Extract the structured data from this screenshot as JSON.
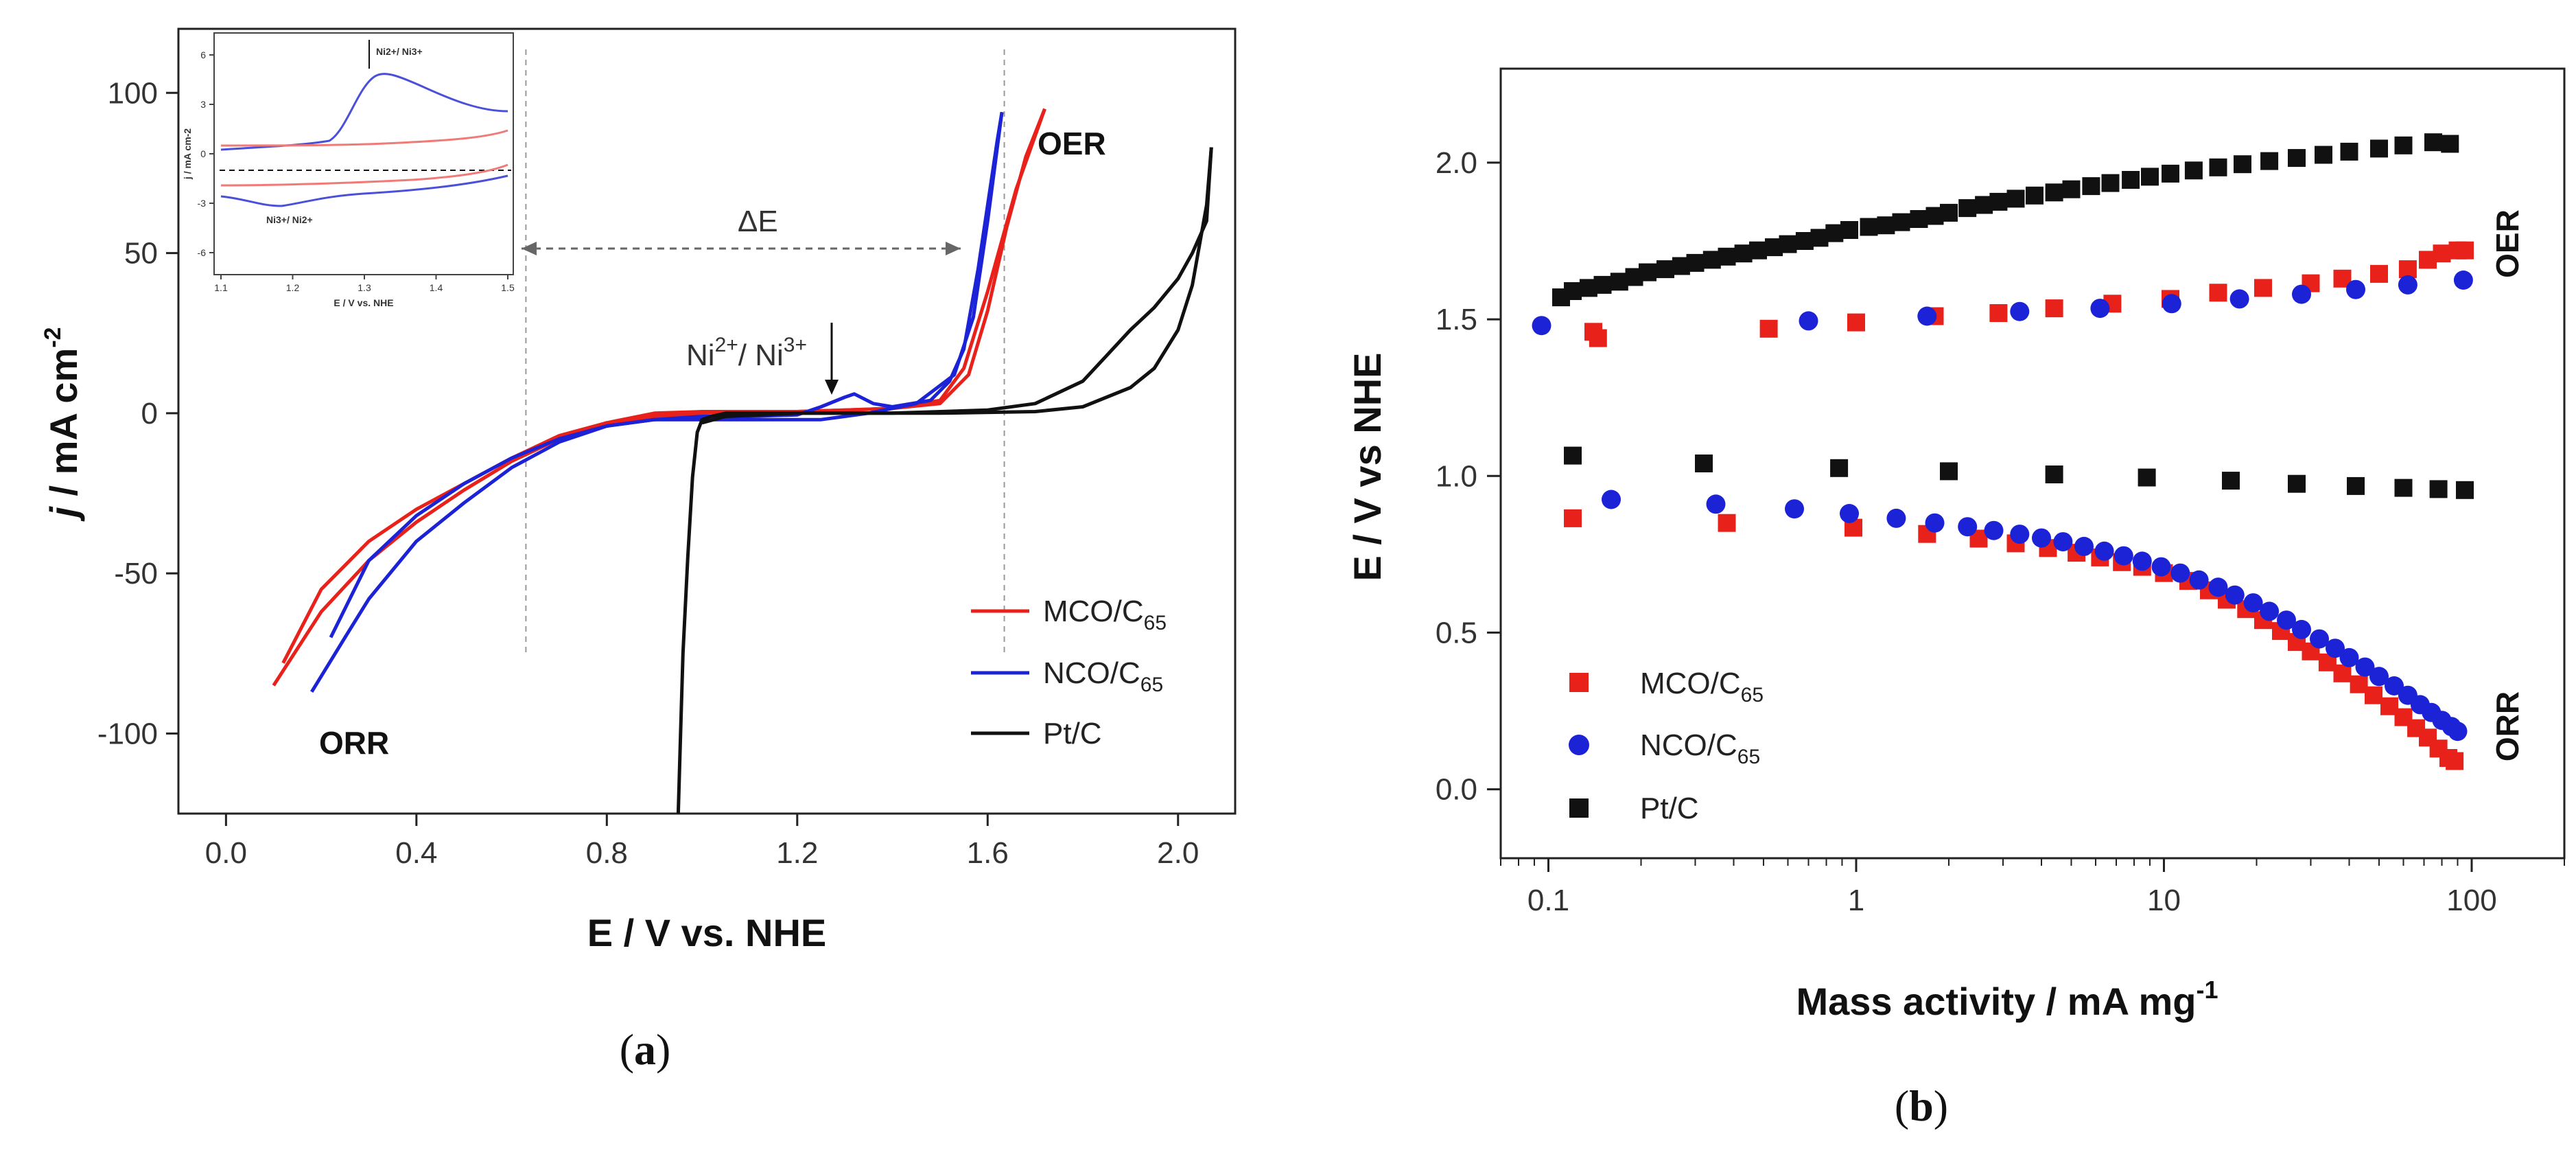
{
  "chart_data": [
    {
      "id": "a",
      "type": "line",
      "panel_label": "a",
      "xlabel": "E / V vs. NHE",
      "ylabel_italic": "j",
      "ylabel_rest": " / mA cm",
      "ylabel_sup": "-2",
      "xlim": [
        -0.1,
        2.12
      ],
      "ylim": [
        -125,
        120
      ],
      "xticks": [
        "0.0",
        "0.4",
        "0.8",
        "1.2",
        "1.6",
        "2.0"
      ],
      "yticks": [
        "-100",
        "-50",
        "0",
        "50",
        "100"
      ],
      "annotations": {
        "oer": "OER",
        "orr": "ORR",
        "delta_e": "ΔE",
        "ni_label": "Ni",
        "ni_sup1": "2+",
        "ni_sep": "/ Ni",
        "ni_sup2": "3+"
      },
      "legend": [
        {
          "name": "MCO/C",
          "sub": "65",
          "color": "#e8221b"
        },
        {
          "name": "NCO/C",
          "sub": "65",
          "color": "#1c22d6"
        },
        {
          "name": "Pt/C",
          "sub": "",
          "color": "#111111"
        }
      ],
      "series": [
        {
          "name": "MCO/C65",
          "color": "#e8221b",
          "x": [
            0.1,
            0.2,
            0.3,
            0.4,
            0.5,
            0.6,
            0.7,
            0.8,
            0.9,
            1.0,
            1.1,
            1.2,
            1.3,
            1.4,
            1.5,
            1.56,
            1.6,
            1.64,
            1.68,
            1.72
          ],
          "y": [
            -85,
            -62,
            -46,
            -34,
            -24,
            -15,
            -8,
            -3,
            -1,
            0,
            0.5,
            0.5,
            1,
            1.5,
            3,
            12,
            32,
            58,
            80,
            95
          ]
        },
        {
          "name": "MCO/C65 (return)",
          "color": "#e8221b",
          "x": [
            1.72,
            1.66,
            1.6,
            1.55,
            1.5,
            1.4,
            1.3,
            1.2,
            1.1,
            1.0,
            0.9,
            0.8,
            0.7,
            0.6,
            0.5,
            0.4,
            0.3,
            0.2,
            0.12
          ],
          "y": [
            95,
            70,
            38,
            14,
            4,
            1.5,
            1,
            0.5,
            0.5,
            0.5,
            0,
            -3,
            -7,
            -14,
            -22,
            -30,
            -40,
            -55,
            -78
          ]
        },
        {
          "name": "NCO/C65",
          "color": "#1c22d6",
          "x": [
            0.18,
            0.25,
            0.3,
            0.4,
            0.5,
            0.6,
            0.7,
            0.8,
            0.9,
            1.0,
            1.1,
            1.2,
            1.25,
            1.3,
            1.32,
            1.36,
            1.4,
            1.48,
            1.52,
            1.55,
            1.58,
            1.6,
            1.62,
            1.63
          ],
          "y": [
            -87,
            -70,
            -58,
            -40,
            -28,
            -17,
            -9,
            -4,
            -2,
            -1,
            -1,
            -0.5,
            2,
            5,
            6,
            3,
            2,
            4,
            10,
            20,
            45,
            65,
            85,
            94
          ]
        },
        {
          "name": "NCO/C65 (return)",
          "color": "#1c22d6",
          "x": [
            1.63,
            1.6,
            1.57,
            1.53,
            1.45,
            1.35,
            1.3,
            1.25,
            1.2,
            1.1,
            1.0,
            0.9,
            0.8,
            0.7,
            0.6,
            0.5,
            0.4,
            0.3,
            0.22
          ],
          "y": [
            94,
            60,
            30,
            12,
            3,
            0,
            -1,
            -2,
            -2,
            -2,
            -2,
            -2,
            -4,
            -8,
            -14,
            -22,
            -32,
            -46,
            -70
          ]
        },
        {
          "name": "Pt/C",
          "color": "#111111",
          "x": [
            0.95,
            0.955,
            0.96,
            0.97,
            0.98,
            0.99,
            1.0,
            1.02,
            1.05,
            1.1,
            1.3,
            1.5,
            1.7,
            1.8,
            1.9,
            1.95,
            2.0,
            2.03,
            2.06,
            2.07
          ],
          "y": [
            -125,
            -100,
            -75,
            -45,
            -20,
            -6,
            -2,
            -1,
            0,
            0,
            0,
            0,
            0.5,
            2,
            8,
            14,
            26,
            40,
            65,
            83
          ]
        },
        {
          "name": "Pt/C (return)",
          "color": "#111111",
          "x": [
            2.07,
            2.06,
            2.03,
            2.0,
            1.95,
            1.9,
            1.85,
            1.8,
            1.7,
            1.6,
            1.4,
            1.2,
            1.05,
            1.0
          ],
          "y": [
            83,
            60,
            50,
            42,
            33,
            26,
            18,
            10,
            3,
            1,
            0,
            0,
            -1,
            -3
          ]
        }
      ],
      "inset": {
        "xlabel": "E / V vs. NHE",
        "ylabel": "j / mA cm-2",
        "xticks": [
          "1.1",
          "1.2",
          "1.3",
          "1.4",
          "1.5"
        ],
        "yticks": [
          "-6",
          "-3",
          "0",
          "3",
          "6"
        ],
        "label_top": "Ni2+/ Ni3+",
        "label_bottom": "Ni3+/ Ni2+"
      }
    },
    {
      "id": "b",
      "type": "scatter",
      "panel_label": "b",
      "xlabel": "Mass activity / mA mg",
      "xlabel_sup": "-1",
      "ylabel": "E / V vs NHE",
      "xscale": "log",
      "xlim": [
        0.07,
        200
      ],
      "ylim": [
        -0.22,
        2.3
      ],
      "xticks": [
        "0.1",
        "1",
        "10",
        "100"
      ],
      "yticks": [
        "0.0",
        "0.5",
        "1.0",
        "1.5",
        "2.0"
      ],
      "annotations": {
        "oer": "OER",
        "orr": "ORR"
      },
      "legend": [
        {
          "name": "MCO/C",
          "sub": "65",
          "color": "#e8221b",
          "marker": "square"
        },
        {
          "name": "NCO/C",
          "sub": "65",
          "color": "#1c22d6",
          "marker": "circle"
        },
        {
          "name": "Pt/C",
          "sub": "",
          "color": "#111111",
          "marker": "square"
        }
      ],
      "series": [
        {
          "name": "Pt/C OER",
          "color": "#111111",
          "marker": "square",
          "x": [
            0.11,
            0.12,
            0.135,
            0.15,
            0.17,
            0.19,
            0.21,
            0.24,
            0.27,
            0.3,
            0.34,
            0.38,
            0.43,
            0.48,
            0.54,
            0.6,
            0.68,
            0.76,
            0.85,
            0.95,
            1.1,
            1.25,
            1.4,
            1.6,
            1.8,
            2.0,
            2.3,
            2.6,
            2.9,
            3.3,
            3.8,
            4.4,
            5.0,
            5.8,
            6.7,
            7.8,
            9.0,
            10.5,
            12.5,
            15,
            18,
            22,
            27,
            33,
            40,
            50,
            60,
            75,
            85
          ],
          "y": [
            1.57,
            1.59,
            1.6,
            1.61,
            1.62,
            1.635,
            1.65,
            1.66,
            1.67,
            1.68,
            1.69,
            1.7,
            1.71,
            1.72,
            1.73,
            1.74,
            1.75,
            1.76,
            1.775,
            1.785,
            1.795,
            1.8,
            1.81,
            1.82,
            1.83,
            1.84,
            1.855,
            1.865,
            1.875,
            1.885,
            1.895,
            1.905,
            1.915,
            1.925,
            1.935,
            1.945,
            1.955,
            1.965,
            1.975,
            1.985,
            1.995,
            2.005,
            2.015,
            2.025,
            2.035,
            2.045,
            2.055,
            2.065,
            2.06
          ]
        },
        {
          "name": "Pt/C ORR",
          "color": "#111111",
          "marker": "square",
          "x": [
            0.12,
            0.32,
            0.88,
            2.0,
            4.4,
            8.8,
            16.5,
            27,
            42,
            60,
            78,
            95
          ],
          "y": [
            1.065,
            1.04,
            1.025,
            1.015,
            1.005,
            0.995,
            0.985,
            0.975,
            0.968,
            0.962,
            0.958,
            0.955
          ]
        },
        {
          "name": "MCO/C65 OER",
          "color": "#e8221b",
          "marker": "square",
          "x": [
            0.14,
            0.145,
            0.52,
            1.0,
            1.8,
            2.9,
            4.4,
            6.8,
            10.5,
            15,
            21,
            30,
            38,
            50,
            62,
            72,
            80,
            90,
            95
          ],
          "y": [
            1.46,
            1.44,
            1.47,
            1.49,
            1.51,
            1.52,
            1.535,
            1.55,
            1.565,
            1.585,
            1.6,
            1.615,
            1.63,
            1.645,
            1.66,
            1.69,
            1.71,
            1.72,
            1.72
          ]
        },
        {
          "name": "MCO/C65 ORR",
          "color": "#e8221b",
          "marker": "square",
          "x": [
            0.12,
            0.38,
            0.98,
            1.7,
            2.5,
            3.3,
            4.2,
            5.2,
            6.2,
            7.3,
            8.5,
            10,
            12,
            14,
            16,
            18.5,
            21,
            24,
            27,
            30,
            34,
            38,
            43,
            48,
            54,
            60,
            66,
            72,
            78,
            84,
            88
          ],
          "y": [
            0.865,
            0.85,
            0.835,
            0.815,
            0.8,
            0.785,
            0.77,
            0.755,
            0.74,
            0.725,
            0.71,
            0.69,
            0.665,
            0.635,
            0.605,
            0.575,
            0.54,
            0.505,
            0.47,
            0.44,
            0.405,
            0.37,
            0.335,
            0.3,
            0.265,
            0.23,
            0.195,
            0.165,
            0.13,
            0.1,
            0.09
          ]
        },
        {
          "name": "NCO/C65 OER",
          "color": "#1c22d6",
          "marker": "circle",
          "x": [
            0.095,
            0.7,
            1.7,
            3.4,
            6.2,
            10.6,
            17.6,
            28,
            42,
            62,
            94
          ],
          "y": [
            1.48,
            1.495,
            1.51,
            1.525,
            1.535,
            1.55,
            1.565,
            1.58,
            1.595,
            1.61,
            1.625
          ]
        },
        {
          "name": "NCO/C65 ORR",
          "color": "#1c22d6",
          "marker": "circle",
          "x": [
            0.16,
            0.35,
            0.63,
            0.95,
            1.35,
            1.8,
            2.3,
            2.8,
            3.4,
            4.0,
            4.7,
            5.5,
            6.4,
            7.4,
            8.5,
            9.8,
            11.3,
            13,
            15,
            17,
            19.5,
            22,
            25,
            28,
            32,
            36,
            40,
            45,
            50,
            56,
            62,
            68,
            74,
            80,
            86,
            90
          ],
          "y": [
            0.925,
            0.91,
            0.895,
            0.88,
            0.865,
            0.85,
            0.838,
            0.826,
            0.814,
            0.802,
            0.79,
            0.775,
            0.76,
            0.745,
            0.728,
            0.71,
            0.69,
            0.668,
            0.645,
            0.62,
            0.595,
            0.568,
            0.54,
            0.51,
            0.48,
            0.45,
            0.42,
            0.39,
            0.36,
            0.33,
            0.3,
            0.27,
            0.245,
            0.22,
            0.2,
            0.185
          ]
        }
      ]
    }
  ]
}
